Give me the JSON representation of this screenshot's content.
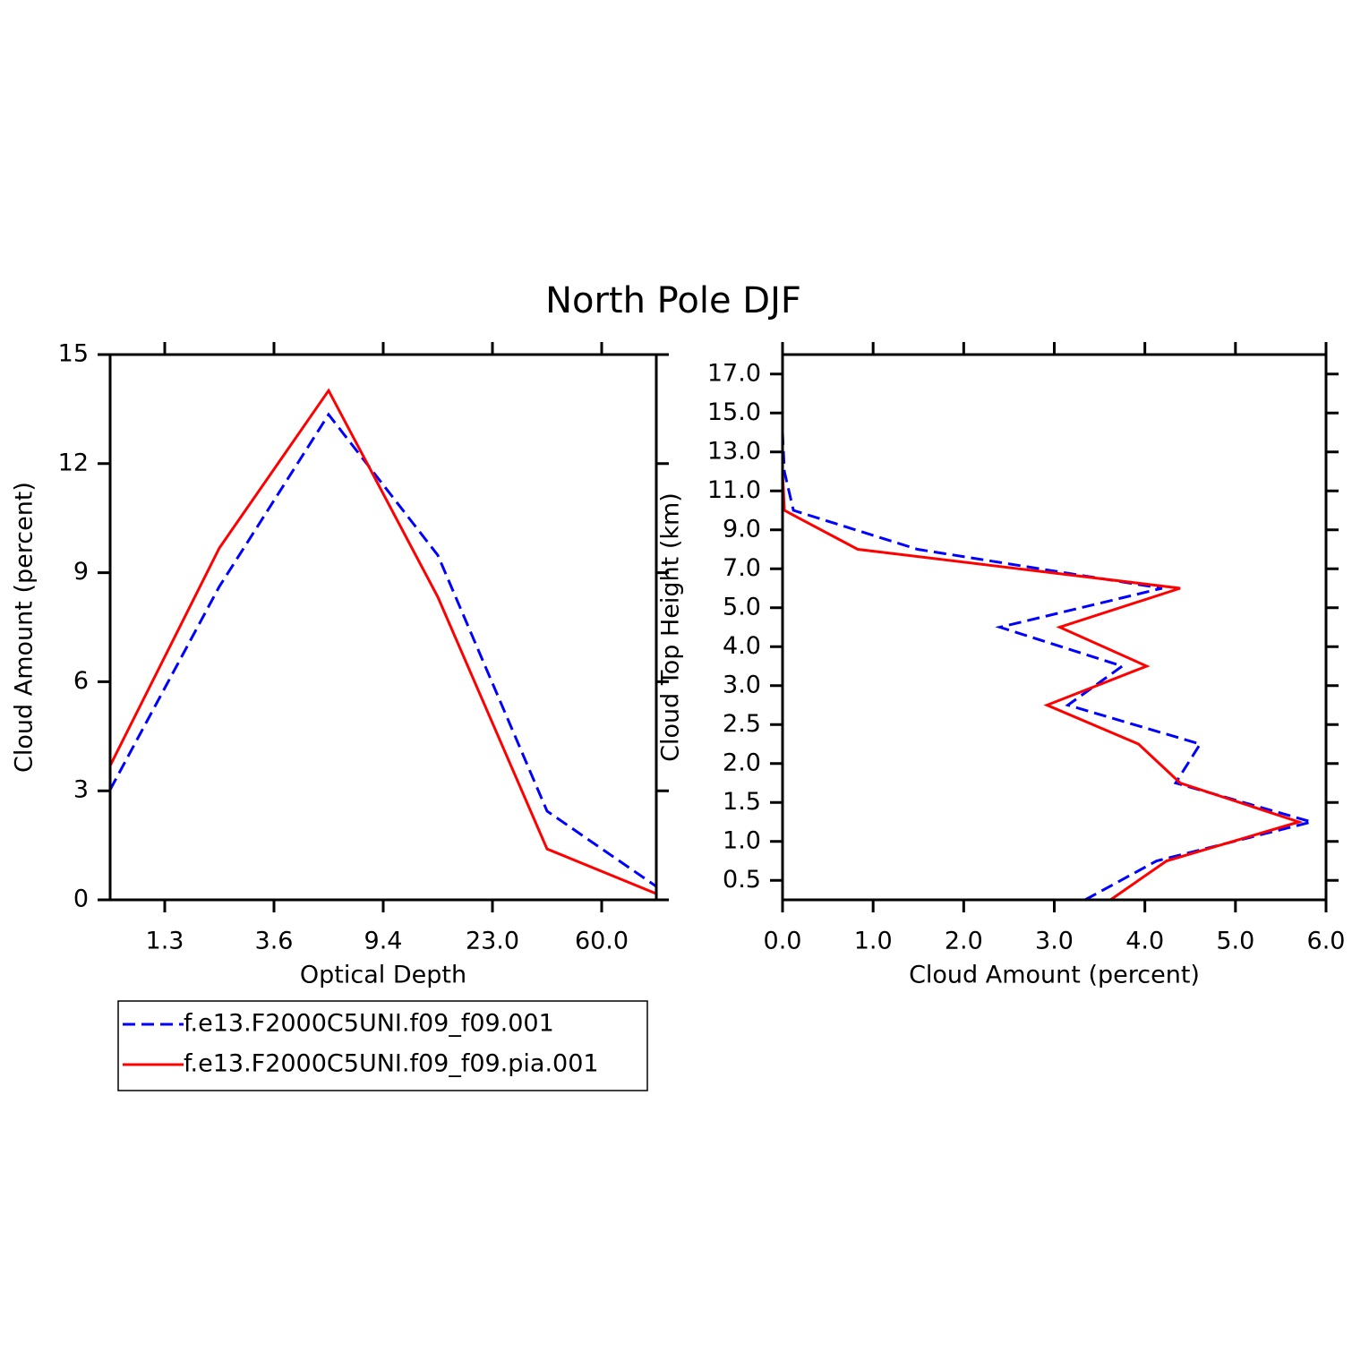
{
  "title": "North Pole DJF",
  "chart_data": [
    {
      "type": "line",
      "orientation": "vertical",
      "x_label": "Optical Depth",
      "y_label": "Cloud Amount (percent)",
      "x": [
        0,
        1,
        2,
        3,
        4,
        5
      ],
      "xlim": [
        0,
        5
      ],
      "xticks": [
        {
          "value": 0.5,
          "label": "1.3"
        },
        {
          "value": 1.5,
          "label": "3.6"
        },
        {
          "value": 2.5,
          "label": "9.4"
        },
        {
          "value": 3.5,
          "label": "23.0"
        },
        {
          "value": 4.5,
          "label": "60.0"
        }
      ],
      "ylim": [
        0,
        15
      ],
      "yticks": [
        0,
        3,
        6,
        9,
        12,
        15
      ],
      "series": [
        {
          "name": "f.e13.F2000C5UNI.f09_f09.001",
          "color": "#0000ff",
          "line_style": "dashed",
          "values": [
            3.03,
            8.62,
            13.35,
            9.48,
            2.44,
            0.37
          ]
        },
        {
          "name": "f.e13.F2000C5UNI.f09_f09.pia.001",
          "color": "#ff0000",
          "line_style": "solid",
          "values": [
            3.69,
            9.68,
            14.01,
            8.33,
            1.4,
            0.17
          ]
        }
      ]
    },
    {
      "type": "line",
      "orientation": "horizontal",
      "x_label": "Cloud Amount (percent)",
      "y_label": "Cloud Top Height (km)",
      "y": [
        0,
        1,
        2,
        3,
        4,
        5,
        6,
        7,
        8,
        9,
        10,
        11,
        12,
        13,
        14
      ],
      "ylim": [
        0,
        14
      ],
      "yticks": [
        0.5,
        {
          "value": 1.5,
          "label": "1.0"
        },
        {
          "value": 2.5,
          "label": "1.5"
        },
        {
          "value": 3.5,
          "label": "2.0"
        },
        {
          "value": 4.5,
          "label": "2.5"
        },
        {
          "value": 5.5,
          "label": "3.0"
        },
        {
          "value": 6.5,
          "label": "4.0"
        },
        {
          "value": 7.5,
          "label": "5.0"
        },
        {
          "value": 8.5,
          "label": "7.0"
        },
        {
          "value": 9.5,
          "label": "9.0"
        },
        {
          "value": 10.5,
          "label": "11.0"
        },
        {
          "value": 11.5,
          "label": "13.0"
        },
        {
          "value": 12.5,
          "label": "15.0"
        },
        {
          "value": 13.5,
          "label": "17.0"
        }
      ],
      "xlim": [
        0,
        6
      ],
      "xticks": [
        {
          "value": 0,
          "label": "0.0"
        },
        {
          "value": 1,
          "label": "1.0"
        },
        {
          "value": 2,
          "label": "2.0"
        },
        {
          "value": 3,
          "label": "3.0"
        },
        {
          "value": 4,
          "label": "4.0"
        },
        {
          "value": 5,
          "label": "5.0"
        },
        {
          "value": 6,
          "label": "6.0"
        }
      ],
      "series": [
        {
          "color": "#0000ff",
          "line_style": "dashed",
          "values": [
            3.34,
            4.13,
            5.84,
            4.34,
            4.61,
            3.15,
            3.75,
            2.4,
            4.19,
            1.49,
            0.12,
            0.02,
            0,
            0,
            0
          ]
        },
        {
          "color": "#ff0000",
          "line_style": "solid",
          "values": [
            3.62,
            4.24,
            5.7,
            4.39,
            3.93,
            2.92,
            4.02,
            3.06,
            4.39,
            0.83,
            0.02,
            0,
            0,
            0,
            0
          ]
        }
      ]
    }
  ]
}
